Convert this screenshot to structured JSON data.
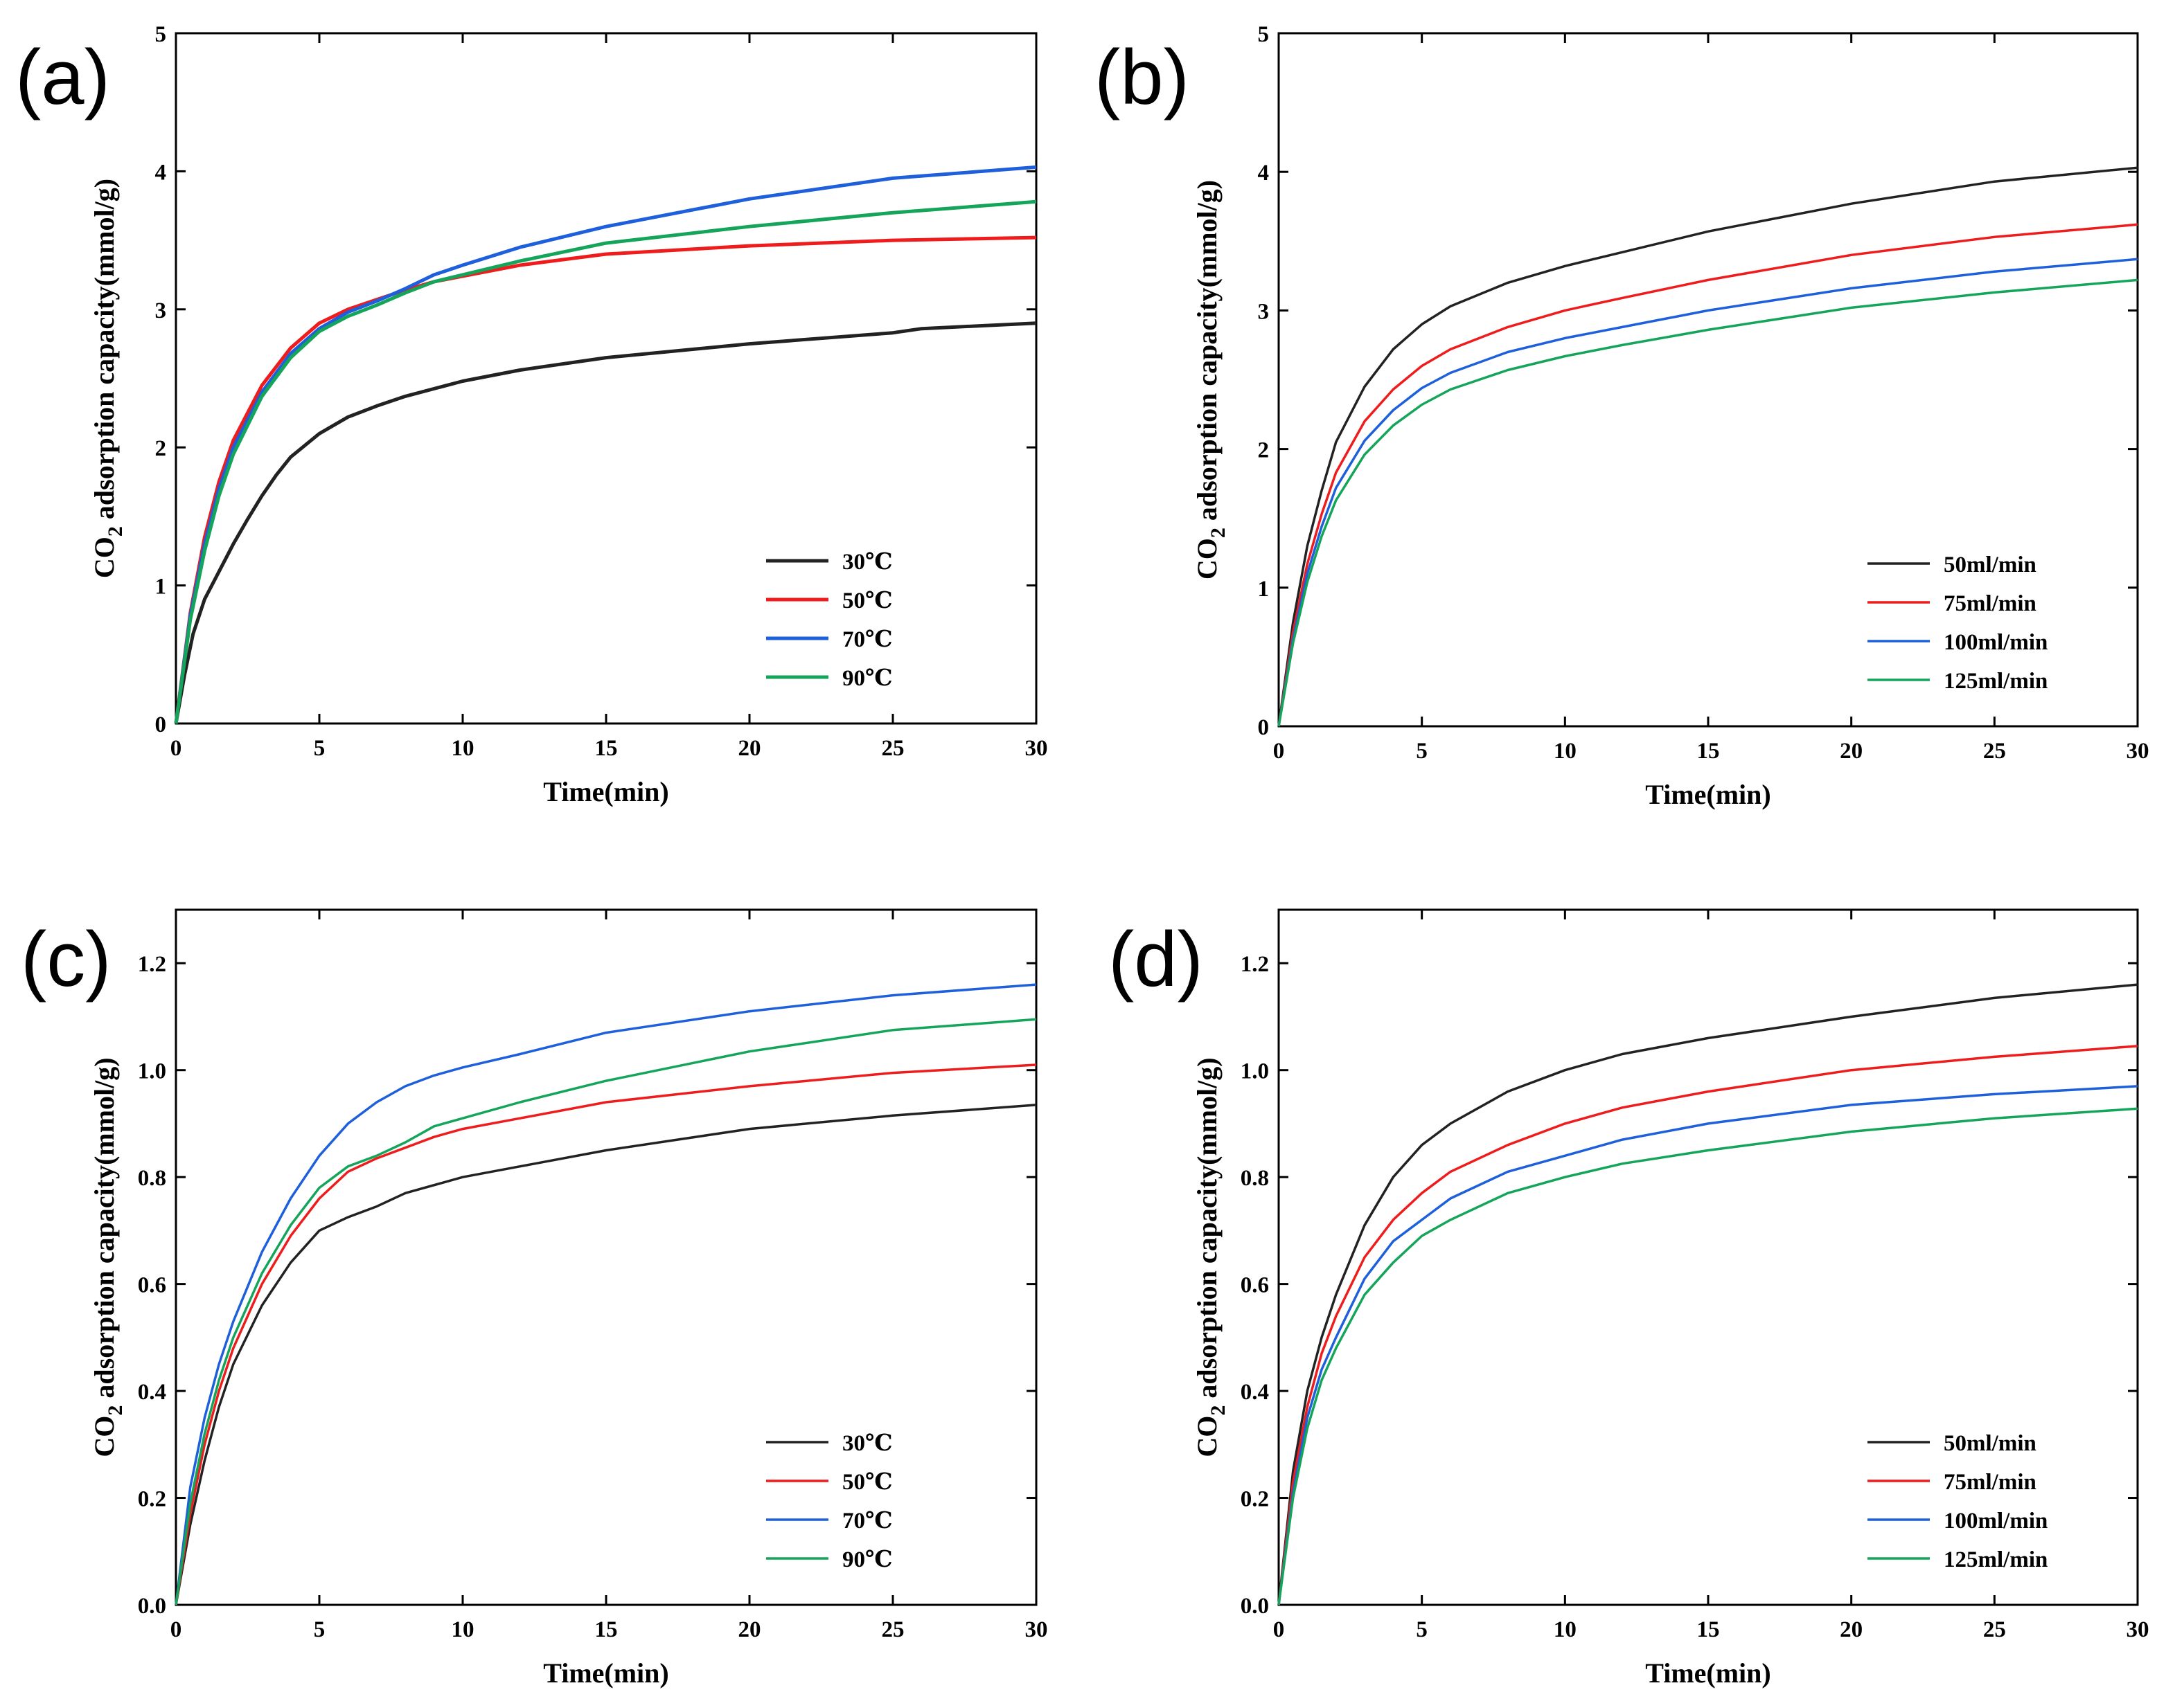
{
  "chart_data": [
    {
      "type": "line",
      "panel_label": "(a)",
      "xlabel": "Time(min)",
      "ylabel_prefix": "CO",
      "ylabel_sub": "2",
      "ylabel_suffix": " adsorption capacity(mmol/g)",
      "xlim": [
        0,
        30
      ],
      "ylim": [
        0,
        5
      ],
      "xticks": [
        0,
        5,
        10,
        15,
        20,
        25,
        30
      ],
      "yticks": [
        0,
        1,
        2,
        3,
        4,
        5
      ],
      "ytick_labels": [
        "0",
        "1",
        "2",
        "3",
        "4",
        "5"
      ],
      "grid": false,
      "legend_placement": "lower-right",
      "series": [
        {
          "name": "30℃",
          "color": "#222222",
          "x": [
            0,
            0.3,
            0.6,
            1,
            1.5,
            2,
            2.5,
            3,
            3.5,
            4,
            5,
            6,
            7,
            8,
            10,
            12,
            15,
            20,
            25,
            26,
            30
          ],
          "y": [
            0,
            0.35,
            0.65,
            0.9,
            1.1,
            1.3,
            1.48,
            1.65,
            1.8,
            1.93,
            2.1,
            2.22,
            2.3,
            2.37,
            2.48,
            2.56,
            2.65,
            2.75,
            2.83,
            2.86,
            2.9
          ]
        },
        {
          "name": "50℃",
          "color": "#ee1c1c",
          "x": [
            0,
            0.5,
            1,
            1.5,
            2,
            3,
            4,
            5,
            6,
            7,
            8,
            9,
            10,
            12,
            15,
            20,
            25,
            30
          ],
          "y": [
            0,
            0.8,
            1.35,
            1.75,
            2.05,
            2.45,
            2.72,
            2.9,
            3.0,
            3.07,
            3.14,
            3.2,
            3.24,
            3.32,
            3.4,
            3.46,
            3.5,
            3.52
          ]
        },
        {
          "name": "70℃",
          "color": "#1e5fdc",
          "x": [
            0,
            0.5,
            1,
            1.5,
            2,
            3,
            4,
            5,
            6,
            7,
            8,
            9,
            10,
            12,
            15,
            20,
            25,
            30
          ],
          "y": [
            0,
            0.78,
            1.3,
            1.7,
            2.0,
            2.4,
            2.68,
            2.86,
            2.98,
            3.06,
            3.15,
            3.25,
            3.32,
            3.45,
            3.6,
            3.8,
            3.95,
            4.03
          ]
        },
        {
          "name": "90℃",
          "color": "#14a55a",
          "x": [
            0,
            0.5,
            1,
            1.5,
            2,
            3,
            4,
            5,
            6,
            7,
            8,
            9,
            10,
            12,
            15,
            20,
            25,
            30
          ],
          "y": [
            0,
            0.75,
            1.25,
            1.65,
            1.95,
            2.37,
            2.65,
            2.84,
            2.95,
            3.03,
            3.12,
            3.2,
            3.25,
            3.35,
            3.48,
            3.6,
            3.7,
            3.78
          ]
        }
      ]
    },
    {
      "type": "line",
      "panel_label": "(b)",
      "xlabel": "Time(min)",
      "ylabel_prefix": "CO",
      "ylabel_sub": "2",
      "ylabel_suffix": " adsorption capacity(mmol/g)",
      "xlim": [
        0,
        30
      ],
      "ylim": [
        0,
        5
      ],
      "xticks": [
        0,
        5,
        10,
        15,
        20,
        25,
        30
      ],
      "yticks": [
        0,
        1,
        2,
        3,
        4,
        5
      ],
      "ytick_labels": [
        "0",
        "1",
        "2",
        "3",
        "4",
        "5"
      ],
      "grid": false,
      "legend_placement": "lower-right",
      "series": [
        {
          "name": "50ml/min",
          "color": "#222222",
          "x": [
            0,
            0.5,
            1,
            1.5,
            2,
            3,
            4,
            5,
            6,
            8,
            10,
            12,
            15,
            20,
            25,
            30
          ],
          "y": [
            0,
            0.75,
            1.3,
            1.7,
            2.05,
            2.45,
            2.72,
            2.9,
            3.03,
            3.2,
            3.32,
            3.42,
            3.57,
            3.77,
            3.93,
            4.03
          ]
        },
        {
          "name": "75ml/min",
          "color": "#ee1c1c",
          "x": [
            0,
            0.5,
            1,
            1.5,
            2,
            3,
            4,
            5,
            6,
            8,
            10,
            12,
            15,
            20,
            25,
            30
          ],
          "y": [
            0,
            0.68,
            1.17,
            1.53,
            1.83,
            2.2,
            2.43,
            2.6,
            2.72,
            2.88,
            3.0,
            3.09,
            3.22,
            3.4,
            3.53,
            3.62
          ]
        },
        {
          "name": "100ml/min",
          "color": "#1e5fdc",
          "x": [
            0,
            0.5,
            1,
            1.5,
            2,
            3,
            4,
            5,
            6,
            8,
            10,
            12,
            15,
            20,
            25,
            30
          ],
          "y": [
            0,
            0.63,
            1.1,
            1.44,
            1.72,
            2.06,
            2.28,
            2.44,
            2.55,
            2.7,
            2.8,
            2.88,
            3.0,
            3.16,
            3.28,
            3.37
          ]
        },
        {
          "name": "125ml/min",
          "color": "#14a55a",
          "x": [
            0,
            0.5,
            1,
            1.5,
            2,
            3,
            4,
            5,
            6,
            8,
            10,
            12,
            15,
            20,
            25,
            30
          ],
          "y": [
            0,
            0.6,
            1.04,
            1.37,
            1.63,
            1.96,
            2.17,
            2.32,
            2.43,
            2.57,
            2.67,
            2.75,
            2.86,
            3.02,
            3.13,
            3.22
          ]
        }
      ]
    },
    {
      "type": "line",
      "panel_label": "(c)",
      "xlabel": "Time(min)",
      "ylabel_prefix": "CO",
      "ylabel_sub": "2",
      "ylabel_suffix": " adsorption capacity(mmol/g)",
      "xlim": [
        0,
        30
      ],
      "ylim": [
        0,
        1.3
      ],
      "xticks": [
        0,
        5,
        10,
        15,
        20,
        25,
        30
      ],
      "yticks": [
        0,
        0.2,
        0.4,
        0.6,
        0.8,
        1.0,
        1.2
      ],
      "ytick_labels": [
        "0.0",
        "0.2",
        "0.4",
        "0.6",
        "0.8",
        "1.0",
        "1.2"
      ],
      "grid": false,
      "legend_placement": "lower-right",
      "series": [
        {
          "name": "30℃",
          "color": "#222222",
          "x": [
            0,
            0.5,
            1,
            1.5,
            2,
            3,
            4,
            5,
            6,
            7,
            8,
            10,
            12,
            15,
            20,
            25,
            30
          ],
          "y": [
            0,
            0.15,
            0.27,
            0.37,
            0.45,
            0.56,
            0.64,
            0.7,
            0.725,
            0.745,
            0.77,
            0.8,
            0.82,
            0.85,
            0.89,
            0.915,
            0.935
          ]
        },
        {
          "name": "50℃",
          "color": "#ee1c1c",
          "x": [
            0,
            0.5,
            1,
            1.5,
            2,
            3,
            4,
            5,
            6,
            7,
            8,
            9,
            10,
            12,
            15,
            20,
            25,
            30
          ],
          "y": [
            0,
            0.17,
            0.3,
            0.4,
            0.48,
            0.6,
            0.69,
            0.76,
            0.81,
            0.835,
            0.855,
            0.875,
            0.89,
            0.91,
            0.94,
            0.97,
            0.995,
            1.01
          ]
        },
        {
          "name": "70℃",
          "color": "#1e5fdc",
          "x": [
            0,
            0.5,
            1,
            1.5,
            2,
            3,
            4,
            5,
            6,
            7,
            8,
            9,
            10,
            12,
            15,
            20,
            25,
            30
          ],
          "y": [
            0,
            0.22,
            0.35,
            0.45,
            0.53,
            0.66,
            0.76,
            0.84,
            0.9,
            0.94,
            0.97,
            0.99,
            1.005,
            1.03,
            1.07,
            1.11,
            1.14,
            1.16
          ]
        },
        {
          "name": "90℃",
          "color": "#14a55a",
          "x": [
            0,
            0.5,
            1,
            1.5,
            2,
            3,
            4,
            5,
            6,
            7,
            8,
            9,
            10,
            12,
            15,
            20,
            25,
            30
          ],
          "y": [
            0,
            0.19,
            0.32,
            0.42,
            0.5,
            0.62,
            0.71,
            0.78,
            0.82,
            0.84,
            0.865,
            0.895,
            0.91,
            0.94,
            0.98,
            1.035,
            1.075,
            1.095
          ]
        }
      ]
    },
    {
      "type": "line",
      "panel_label": "(d)",
      "xlabel": "Time(min)",
      "ylabel_prefix": "CO",
      "ylabel_sub": "2",
      "ylabel_suffix": " adsorption capacity(mmol/g)",
      "xlim": [
        0,
        30
      ],
      "ylim": [
        0,
        1.3
      ],
      "xticks": [
        0,
        5,
        10,
        15,
        20,
        25,
        30
      ],
      "yticks": [
        0,
        0.2,
        0.4,
        0.6,
        0.8,
        1.0,
        1.2
      ],
      "ytick_labels": [
        "0.0",
        "0.2",
        "0.4",
        "0.6",
        "0.8",
        "1.0",
        "1.2"
      ],
      "grid": false,
      "legend_placement": "lower-right",
      "series": [
        {
          "name": "50ml/min",
          "color": "#222222",
          "x": [
            0,
            0.5,
            1,
            1.5,
            2,
            3,
            4,
            5,
            6,
            8,
            10,
            12,
            15,
            20,
            25,
            30
          ],
          "y": [
            0,
            0.25,
            0.4,
            0.5,
            0.58,
            0.71,
            0.8,
            0.86,
            0.9,
            0.96,
            1.0,
            1.03,
            1.06,
            1.1,
            1.135,
            1.16
          ]
        },
        {
          "name": "75ml/min",
          "color": "#ee1c1c",
          "x": [
            0,
            0.5,
            1,
            1.5,
            2,
            3,
            4,
            5,
            6,
            8,
            10,
            12,
            15,
            20,
            25,
            30
          ],
          "y": [
            0,
            0.23,
            0.37,
            0.47,
            0.54,
            0.65,
            0.72,
            0.77,
            0.81,
            0.86,
            0.9,
            0.93,
            0.96,
            1.0,
            1.025,
            1.045
          ]
        },
        {
          "name": "100ml/min",
          "color": "#1e5fdc",
          "x": [
            0,
            0.5,
            1,
            1.5,
            2,
            3,
            4,
            5,
            6,
            8,
            10,
            12,
            15,
            20,
            25,
            30
          ],
          "y": [
            0,
            0.21,
            0.35,
            0.44,
            0.5,
            0.61,
            0.68,
            0.72,
            0.76,
            0.81,
            0.84,
            0.87,
            0.9,
            0.935,
            0.955,
            0.97
          ]
        },
        {
          "name": "125ml/min",
          "color": "#14a55a",
          "x": [
            0,
            0.5,
            1,
            1.5,
            2,
            3,
            4,
            5,
            6,
            8,
            10,
            12,
            15,
            20,
            25,
            30
          ],
          "y": [
            0,
            0.2,
            0.33,
            0.42,
            0.48,
            0.58,
            0.64,
            0.69,
            0.72,
            0.77,
            0.8,
            0.825,
            0.85,
            0.885,
            0.91,
            0.928
          ]
        }
      ]
    }
  ]
}
